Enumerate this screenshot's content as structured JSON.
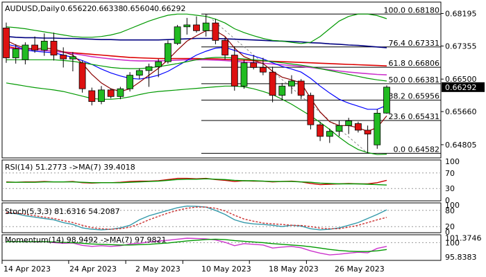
{
  "chart_data": [
    {
      "type": "candlestick",
      "title": "AUDUSD,Daily",
      "ohlc_text": [
        "0.65622",
        "0.66338",
        "0.65604",
        "0.66292"
      ],
      "ylim": [
        0.645,
        0.684
      ],
      "y_ticks": [
        "0.68195",
        "0.67355",
        "0.66500",
        "0.65660",
        "0.64805"
      ],
      "last_price": "0.66292",
      "candles": [
        {
          "o": 0.6782,
          "h": 0.6796,
          "l": 0.6692,
          "c": 0.6705
        },
        {
          "o": 0.6705,
          "h": 0.674,
          "l": 0.669,
          "c": 0.6728
        },
        {
          "o": 0.67,
          "h": 0.6745,
          "l": 0.6688,
          "c": 0.6738
        },
        {
          "o": 0.6738,
          "h": 0.676,
          "l": 0.6718,
          "c": 0.6725
        },
        {
          "o": 0.6725,
          "h": 0.6768,
          "l": 0.671,
          "c": 0.6748
        },
        {
          "o": 0.6748,
          "h": 0.677,
          "l": 0.6698,
          "c": 0.6712
        },
        {
          "o": 0.6712,
          "h": 0.6732,
          "l": 0.668,
          "c": 0.6702
        },
        {
          "o": 0.6702,
          "h": 0.672,
          "l": 0.667,
          "c": 0.6708
        },
        {
          "o": 0.6692,
          "h": 0.6698,
          "l": 0.6615,
          "c": 0.6625
        },
        {
          "o": 0.662,
          "h": 0.6628,
          "l": 0.6582,
          "c": 0.6592
        },
        {
          "o": 0.6592,
          "h": 0.6632,
          "l": 0.6585,
          "c": 0.6622
        },
        {
          "o": 0.6622,
          "h": 0.6626,
          "l": 0.66,
          "c": 0.6605
        },
        {
          "o": 0.6605,
          "h": 0.663,
          "l": 0.6598,
          "c": 0.6625
        },
        {
          "o": 0.6625,
          "h": 0.6668,
          "l": 0.6618,
          "c": 0.666
        },
        {
          "o": 0.666,
          "h": 0.6678,
          "l": 0.665,
          "c": 0.6672
        },
        {
          "o": 0.6672,
          "h": 0.669,
          "l": 0.663,
          "c": 0.6682
        },
        {
          "o": 0.6682,
          "h": 0.6702,
          "l": 0.6655,
          "c": 0.6695
        },
        {
          "o": 0.6695,
          "h": 0.675,
          "l": 0.669,
          "c": 0.6742
        },
        {
          "o": 0.6742,
          "h": 0.679,
          "l": 0.6738,
          "c": 0.6785
        },
        {
          "o": 0.6785,
          "h": 0.6808,
          "l": 0.6765,
          "c": 0.679
        },
        {
          "o": 0.679,
          "h": 0.6812,
          "l": 0.677,
          "c": 0.6775
        },
        {
          "o": 0.6775,
          "h": 0.6818,
          "l": 0.676,
          "c": 0.6795
        },
        {
          "o": 0.6795,
          "h": 0.6805,
          "l": 0.674,
          "c": 0.675
        },
        {
          "o": 0.675,
          "h": 0.6758,
          "l": 0.67,
          "c": 0.6712
        },
        {
          "o": 0.6712,
          "h": 0.6735,
          "l": 0.662,
          "c": 0.6632
        },
        {
          "o": 0.6632,
          "h": 0.67,
          "l": 0.6625,
          "c": 0.6692
        },
        {
          "o": 0.6692,
          "h": 0.6712,
          "l": 0.6675,
          "c": 0.668
        },
        {
          "o": 0.668,
          "h": 0.6705,
          "l": 0.666,
          "c": 0.6668
        },
        {
          "o": 0.6668,
          "h": 0.6682,
          "l": 0.659,
          "c": 0.6608
        },
        {
          "o": 0.6608,
          "h": 0.664,
          "l": 0.6595,
          "c": 0.6632
        },
        {
          "o": 0.6632,
          "h": 0.666,
          "l": 0.6612,
          "c": 0.6645
        },
        {
          "o": 0.6645,
          "h": 0.665,
          "l": 0.6598,
          "c": 0.6608
        },
        {
          "o": 0.6608,
          "h": 0.6615,
          "l": 0.652,
          "c": 0.6532
        },
        {
          "o": 0.6532,
          "h": 0.654,
          "l": 0.649,
          "c": 0.6502
        },
        {
          "o": 0.6502,
          "h": 0.6522,
          "l": 0.6485,
          "c": 0.6515
        },
        {
          "o": 0.6515,
          "h": 0.6542,
          "l": 0.6502,
          "c": 0.653
        },
        {
          "o": 0.653,
          "h": 0.655,
          "l": 0.6508,
          "c": 0.6542
        },
        {
          "o": 0.6535,
          "h": 0.654,
          "l": 0.6512,
          "c": 0.6518
        },
        {
          "o": 0.6518,
          "h": 0.653,
          "l": 0.6458,
          "c": 0.6508
        },
        {
          "o": 0.648,
          "h": 0.6572,
          "l": 0.647,
          "c": 0.6562
        },
        {
          "o": 0.65622,
          "h": 0.66338,
          "l": 0.65604,
          "c": 0.66292
        }
      ],
      "fibonacci": [
        {
          "label": "100.0",
          "value": 0.6818,
          "text": "0.68180"
        },
        {
          "label": "76.4",
          "value": 0.67331,
          "text": "0.67331"
        },
        {
          "label": "61.8",
          "value": 0.66806,
          "text": "0.66806"
        },
        {
          "label": "50.0",
          "value": 0.66381,
          "text": "0.66381"
        },
        {
          "label": "38.2",
          "value": 0.65956,
          "text": "0.65956"
        },
        {
          "label": "23.6",
          "value": 0.65431,
          "text": "0.65431"
        },
        {
          "label": "0.0",
          "value": 0.64582,
          "text": "0.64582"
        }
      ],
      "moving_averages": [
        {
          "color": "#000080",
          "points": [
            0.676,
            0.6758,
            0.6757,
            0.6757,
            0.6756,
            0.6756,
            0.6755,
            0.6755,
            0.6754,
            0.6753,
            0.6752,
            0.6752,
            0.6751,
            0.6751,
            0.6751,
            0.6751,
            0.6751,
            0.6752,
            0.6753,
            0.6754,
            0.6755,
            0.6755,
            0.6755,
            0.6754,
            0.6753,
            0.6752,
            0.6751,
            0.675,
            0.6749,
            0.6748,
            0.6747,
            0.6746,
            0.6744,
            0.6743,
            0.6741,
            0.674,
            0.6738,
            0.6737,
            0.6735,
            0.6733,
            0.6731
          ]
        },
        {
          "color": "#dd0000",
          "points": [
            0.6735,
            0.673,
            0.6728,
            0.6726,
            0.6724,
            0.6722,
            0.672,
            0.6718,
            0.6716,
            0.6714,
            0.6712,
            0.671,
            0.6708,
            0.6706,
            0.6705,
            0.6704,
            0.6703,
            0.6703,
            0.6703,
            0.6703,
            0.6703,
            0.6702,
            0.6702,
            0.6701,
            0.67,
            0.6699,
            0.6698,
            0.6697,
            0.6696,
            0.6695,
            0.6694,
            0.6693,
            0.6692,
            0.6691,
            0.669,
            0.6689,
            0.6688,
            0.6687,
            0.6686,
            0.6685,
            0.6684
          ]
        },
        {
          "color": "#cc33cc",
          "points": [
            0.673,
            0.6728,
            0.6727,
            0.6726,
            0.6724,
            0.6722,
            0.6719,
            0.6716,
            0.6712,
            0.6708,
            0.6705,
            0.6702,
            0.67,
            0.6698,
            0.6697,
            0.6697,
            0.6697,
            0.6698,
            0.6699,
            0.67,
            0.67,
            0.67,
            0.6699,
            0.6698,
            0.6696,
            0.6694,
            0.6693,
            0.6691,
            0.6689,
            0.6687,
            0.6685,
            0.6683,
            0.668,
            0.6677,
            0.6674,
            0.6671,
            0.6668,
            0.6666,
            0.6664,
            0.6662,
            0.6661
          ]
        },
        {
          "color": "#0000ff",
          "points": [
            0.674,
            0.6735,
            0.6725,
            0.6722,
            0.672,
            0.6718,
            0.6712,
            0.6706,
            0.6698,
            0.6688,
            0.6676,
            0.6666,
            0.6658,
            0.6652,
            0.665,
            0.6654,
            0.666,
            0.667,
            0.6684,
            0.6698,
            0.6712,
            0.6722,
            0.673,
            0.6732,
            0.6724,
            0.6716,
            0.671,
            0.6702,
            0.6692,
            0.6683,
            0.6676,
            0.6668,
            0.6652,
            0.6632,
            0.6614,
            0.6598,
            0.6588,
            0.658,
            0.6572,
            0.6572,
            0.6582
          ]
        },
        {
          "color": "#8b0000",
          "points": [
            0.675,
            0.6738,
            0.673,
            0.6728,
            0.673,
            0.6728,
            0.672,
            0.6712,
            0.669,
            0.6662,
            0.664,
            0.6625,
            0.6618,
            0.6625,
            0.6642,
            0.666,
            0.6678,
            0.67,
            0.6725,
            0.6748,
            0.6762,
            0.6775,
            0.6775,
            0.676,
            0.673,
            0.6708,
            0.6698,
            0.669,
            0.667,
            0.6655,
            0.6648,
            0.664,
            0.66,
            0.6565,
            0.654,
            0.653,
            0.653,
            0.6524,
            0.6515,
            0.6525,
            0.6555
          ]
        },
        {
          "color": "#009900",
          "points": [
            0.67,
            0.67,
            0.67,
            0.67,
            0.67,
            0.67,
            0.6698,
            0.6696,
            0.6692,
            0.6688,
            0.6684,
            0.668,
            0.6678,
            0.6677,
            0.6677,
            0.6679,
            0.6682,
            0.6686,
            0.669,
            0.6695,
            0.67,
            0.6704,
            0.6706,
            0.6706,
            0.6704,
            0.6702,
            0.67,
            0.6698,
            0.6695,
            0.6692,
            0.6689,
            0.6686,
            0.6682,
            0.6677,
            0.6672,
            0.6667,
            0.6662,
            0.6657,
            0.6652,
            0.6648,
            0.6645
          ]
        },
        {
          "color": "#009900",
          "points": [
            0.6785,
            0.6783,
            0.678,
            0.6776,
            0.6772,
            0.6768,
            0.6764,
            0.676,
            0.6758,
            0.6758,
            0.676,
            0.6764,
            0.677,
            0.678,
            0.679,
            0.68,
            0.6808,
            0.6815,
            0.6818,
            0.6818,
            0.6815,
            0.6812,
            0.6805,
            0.6795,
            0.678,
            0.677,
            0.6762,
            0.6755,
            0.675,
            0.6748,
            0.6745,
            0.6742,
            0.6745,
            0.676,
            0.678,
            0.68,
            0.6812,
            0.6818,
            0.6818,
            0.6814,
            0.6806
          ]
        },
        {
          "color": "#009900",
          "points": [
            0.664,
            0.6636,
            0.6632,
            0.6628,
            0.6625,
            0.6622,
            0.6618,
            0.6612,
            0.6606,
            0.66,
            0.6598,
            0.6598,
            0.66,
            0.6604,
            0.661,
            0.6615,
            0.6618,
            0.662,
            0.6622,
            0.6624,
            0.6626,
            0.6628,
            0.663,
            0.6632,
            0.6632,
            0.663,
            0.6625,
            0.6618,
            0.661,
            0.6598,
            0.6585,
            0.657,
            0.6555,
            0.6538,
            0.652,
            0.65,
            0.6482,
            0.6468,
            0.646,
            0.6455,
            0.6456
          ]
        }
      ]
    },
    {
      "type": "line",
      "title": "RSI(14) 51.2773 ->MA(7) 39.4018",
      "ylim": [
        0,
        100
      ],
      "levels": [
        {
          "value": 100,
          "text": "100"
        },
        {
          "value": 70,
          "text": "70"
        },
        {
          "value": 30,
          "text": "30"
        },
        {
          "value": 0,
          "text": "0"
        }
      ],
      "series": [
        {
          "color": "#cc0000",
          "values": [
            47,
            46,
            47,
            47,
            48,
            47,
            47,
            48,
            45,
            44,
            45,
            45,
            46,
            48,
            49,
            49,
            50,
            53,
            56,
            56,
            55,
            56,
            53,
            51,
            48,
            50,
            49,
            49,
            47,
            48,
            49,
            47,
            43,
            40,
            41,
            42,
            43,
            42,
            42,
            45,
            51
          ]
        },
        {
          "color": "#009900",
          "values": [
            46,
            46,
            46,
            46,
            47,
            47,
            47,
            47,
            46,
            45,
            45,
            45,
            45,
            46,
            47,
            48,
            49,
            51,
            53,
            54,
            54,
            55,
            54,
            53,
            51,
            50,
            50,
            49,
            48,
            48,
            48,
            47,
            46,
            44,
            43,
            42,
            42,
            42,
            41,
            40,
            39
          ]
        }
      ]
    },
    {
      "type": "line",
      "title": "Stoch(5,3,3) 81.6316 54.2087",
      "ylim": [
        0,
        100
      ],
      "levels": [
        {
          "value": 100,
          "text": "100"
        },
        {
          "value": 80,
          "text": "80"
        },
        {
          "value": 20,
          "text": "20"
        },
        {
          "value": 0,
          "text": "0"
        }
      ],
      "series": [
        {
          "color": "#3399aa",
          "values": [
            70,
            68,
            60,
            55,
            50,
            45,
            35,
            28,
            15,
            10,
            8,
            10,
            15,
            25,
            45,
            60,
            70,
            80,
            90,
            96,
            95,
            92,
            80,
            65,
            45,
            35,
            30,
            28,
            25,
            20,
            25,
            22,
            12,
            8,
            10,
            15,
            25,
            35,
            50,
            65,
            82
          ]
        },
        {
          "color": "#cc3333",
          "values": [
            72,
            70,
            66,
            60,
            55,
            50,
            42,
            35,
            25,
            16,
            12,
            10,
            12,
            18,
            30,
            45,
            58,
            70,
            80,
            88,
            92,
            92,
            88,
            78,
            62,
            48,
            40,
            33,
            30,
            28,
            25,
            24,
            20,
            14,
            12,
            12,
            18,
            25,
            35,
            45,
            54
          ]
        }
      ]
    },
    {
      "type": "line",
      "title": "Momentum(14) 98.9492 ->MA(7) 97.9821",
      "ylim": [
        95.0,
        101.9
      ],
      "levels": [
        {
          "value": 101.3746,
          "text": "101.3746"
        },
        {
          "value": 100,
          "text": "100"
        },
        {
          "value": 95.8383,
          "text": "95.8383"
        }
      ],
      "series": [
        {
          "color": "#cc33cc",
          "values": [
            100.4,
            100.3,
            100.4,
            100.2,
            100.3,
            100.0,
            99.8,
            99.9,
            99.2,
            98.9,
            99.1,
            98.9,
            99.1,
            99.6,
            99.8,
            100.2,
            100.5,
            100.7,
            101.0,
            101.3,
            101.2,
            101.1,
            100.8,
            100.1,
            99.1,
            99.7,
            99.5,
            99.3,
            98.4,
            98.7,
            98.9,
            98.5,
            97.6,
            96.9,
            96.4,
            96.6,
            96.9,
            97.2,
            97.0,
            98.3,
            98.9
          ]
        },
        {
          "color": "#009900",
          "values": [
            100.3,
            100.3,
            100.3,
            100.3,
            100.3,
            100.2,
            100.1,
            100.0,
            99.8,
            99.6,
            99.5,
            99.4,
            99.3,
            99.3,
            99.4,
            99.5,
            99.7,
            99.9,
            100.2,
            100.5,
            100.7,
            100.9,
            101.0,
            100.9,
            100.6,
            100.4,
            100.2,
            100.0,
            99.7,
            99.5,
            99.3,
            99.1,
            98.8,
            98.4,
            98.0,
            97.7,
            97.5,
            97.4,
            97.4,
            97.6,
            97.98
          ]
        }
      ]
    }
  ],
  "x_axis": {
    "labels": [
      "14 Apr 2023",
      "24 Apr 2023",
      "2 May 2023",
      "10 May 2023",
      "18 May 2023",
      "26 May 2023"
    ]
  },
  "colors": {
    "bull": "#22bb22",
    "bear": "#dd1111",
    "last_price_bg": "#000000",
    "last_price_fg": "#ffffff"
  }
}
